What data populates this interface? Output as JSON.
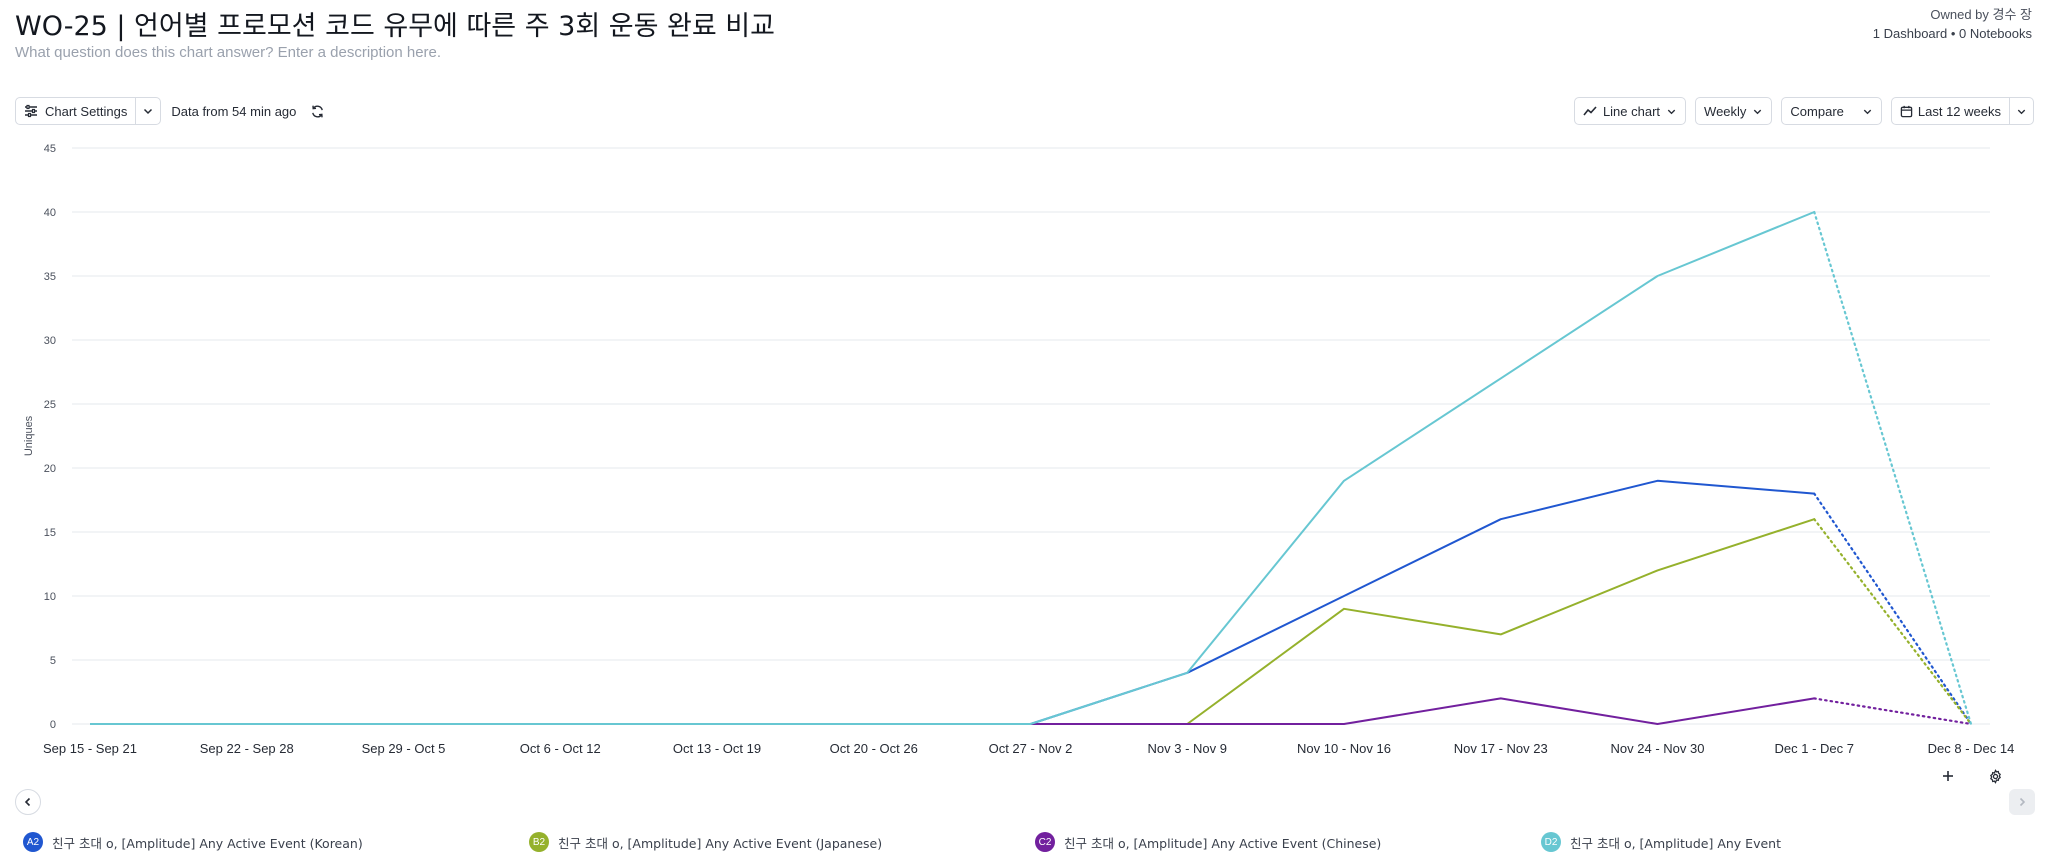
{
  "header": {
    "title": "WO-25 | 언어별 프로모션 코드 유무에 따른 주 3회 운동 완료 비교",
    "description_placeholder": "What question does this chart answer? Enter a description here.",
    "owner": "Owned by 경수 장",
    "usage": "1 Dashboard • 0 Notebooks"
  },
  "toolbar": {
    "chart_settings_label": "Chart Settings",
    "data_from": "Data from 54 min ago",
    "chart_type_label": "Line chart",
    "interval_label": "Weekly",
    "compare_label": "Compare",
    "date_range_label": "Last 12 weeks"
  },
  "colors": {
    "korean": "#2057d0",
    "japanese": "#95b12c",
    "chinese": "#72209e",
    "any": "#67c7d2",
    "grid": "#e6e8ec"
  },
  "chart_data": {
    "type": "line",
    "ylabel": "Uniques",
    "ylim": [
      0,
      45
    ],
    "yticks": [
      0,
      5,
      10,
      15,
      20,
      25,
      30,
      35,
      40,
      45
    ],
    "categories": [
      "Sep 15 - Sep 21",
      "Sep 22 - Sep 28",
      "Sep 29 - Oct 5",
      "Oct 6 - Oct 12",
      "Oct 13 - Oct 19",
      "Oct 20 - Oct 26",
      "Oct 27 - Nov 2",
      "Nov 3 - Nov 9",
      "Nov 10 - Nov 16",
      "Nov 17 - Nov 23",
      "Nov 24 - Nov 30",
      "Dec 1 - Dec 7",
      "Dec 8 - Dec 14"
    ],
    "incomplete_from_index": 11,
    "series": [
      {
        "key": "korean",
        "badge": "A2",
        "name": "친구 초대 o, [Amplitude] Any Active Event (Korean)",
        "color": "#2057d0",
        "values": [
          0,
          0,
          0,
          0,
          0,
          0,
          0,
          4,
          10,
          16,
          19,
          18,
          0
        ]
      },
      {
        "key": "japanese",
        "badge": "B2",
        "name": "친구 초대 o, [Amplitude] Any Active Event (Japanese)",
        "color": "#95b12c",
        "values": [
          0,
          0,
          0,
          0,
          0,
          0,
          0,
          0,
          9,
          7,
          12,
          16,
          0
        ]
      },
      {
        "key": "chinese",
        "badge": "C2",
        "name": "친구 초대 o, [Amplitude] Any Active Event (Chinese)",
        "color": "#72209e",
        "values": [
          0,
          0,
          0,
          0,
          0,
          0,
          0,
          0,
          0,
          2,
          0,
          2,
          0
        ]
      },
      {
        "key": "any",
        "badge": "D2",
        "name": "친구 초대 o, [Amplitude] Any Event",
        "color": "#67c7d2",
        "values": [
          0,
          0,
          0,
          0,
          0,
          0,
          0,
          4,
          19,
          27,
          35,
          40,
          0
        ]
      }
    ]
  }
}
